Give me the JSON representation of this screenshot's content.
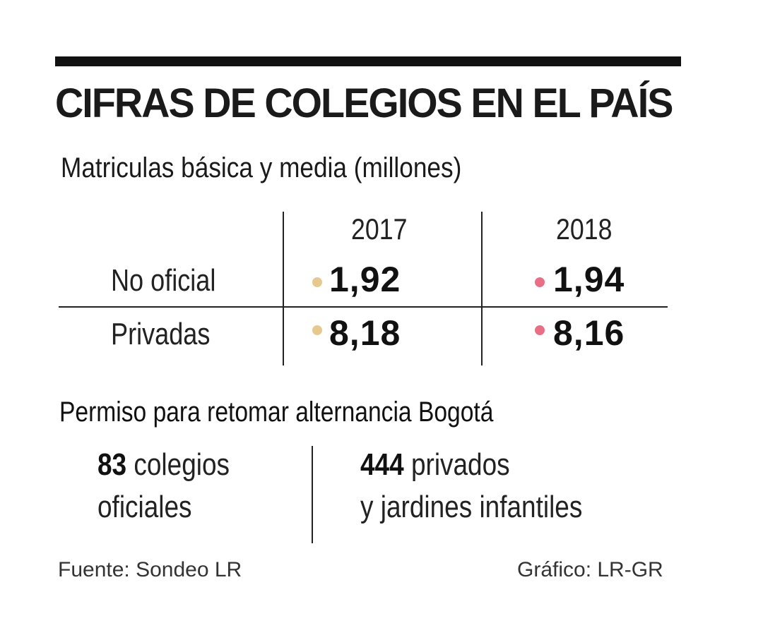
{
  "title": "CIFRAS DE COLEGIOS EN EL PAÍS",
  "subtitle": "Matriculas básica y media (millones)",
  "table": {
    "years": [
      "2017",
      "2018"
    ],
    "rows": [
      {
        "label": "No oficial",
        "values": [
          "1,92",
          "1,94"
        ]
      },
      {
        "label": "Privadas",
        "values": [
          "8,18",
          "8,16"
        ]
      }
    ],
    "dot_colors": [
      "#e6c98f",
      "#ea6f85"
    ]
  },
  "section2": {
    "title": "Permiso para retomar alternancia Bogotá",
    "left": {
      "number": "83",
      "text_line1": "colegios",
      "text_line2": "oficiales"
    },
    "right": {
      "number": "444",
      "text_line1": "privados",
      "text_line2": "y jardines infantiles"
    }
  },
  "footer": {
    "source": "Fuente: Sondeo LR",
    "credit": "Gráfico: LR-GR"
  }
}
